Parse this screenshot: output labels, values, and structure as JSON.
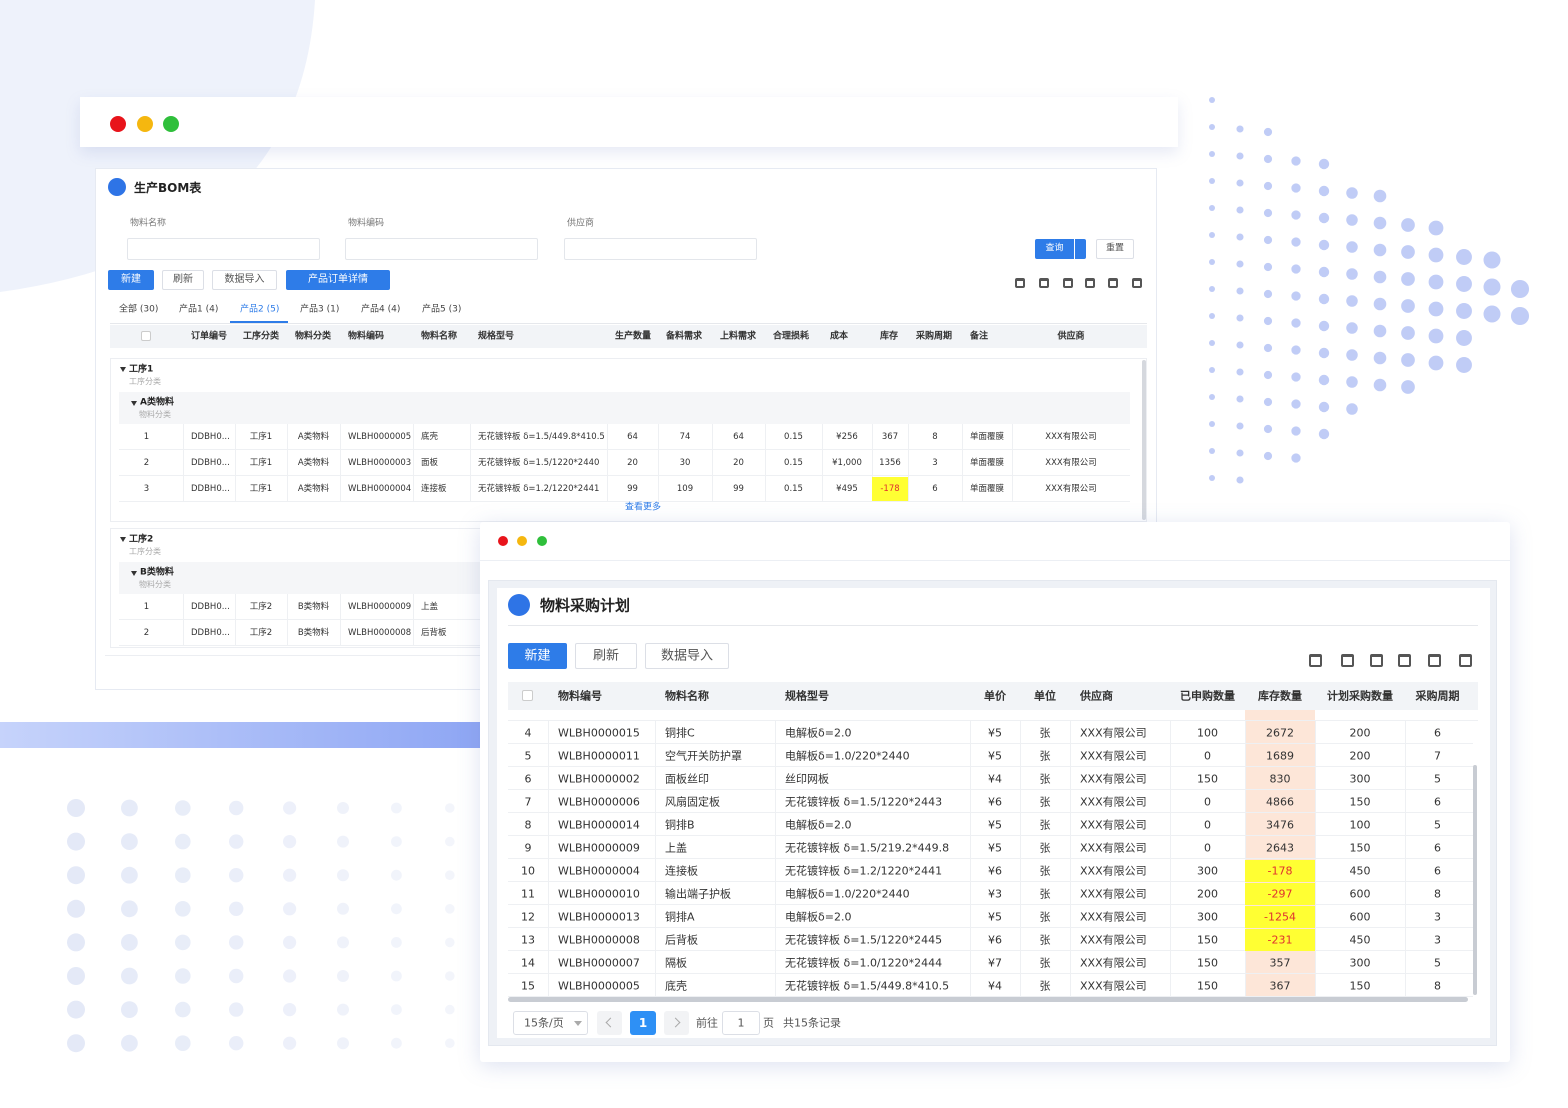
{
  "bom": {
    "title": "生产BOM表",
    "filters": [
      "物料名称",
      "物料编码",
      "供应商"
    ],
    "query": "查询",
    "reset": "重置",
    "toolbar": [
      "新建",
      "刷新",
      "数据导入",
      "产品订单详情"
    ],
    "tabs": [
      "全部 (30)",
      "产品1 (4)",
      "产品2 (5)",
      "产品3 (1)",
      "产品4 (4)",
      "产品5 (3)"
    ],
    "columns": [
      "订单编号",
      "工序分类",
      "物料分类",
      "物料编码",
      "物料名称",
      "规格型号",
      "生产数量",
      "备料需求",
      "上料需求",
      "合理损耗",
      "成本",
      "库存",
      "采购周期",
      "备注",
      "供应商"
    ],
    "groups": [
      {
        "name": "工序1",
        "caption": "工序分类",
        "subgroup": "A类物料",
        "subcaption": "物料分类",
        "more": "查看更多",
        "rows": [
          [
            "1",
            "DDBH0...",
            "工序1",
            "A类物料",
            "WLBH0000005",
            "底壳",
            "无花镀锌板 δ=1.5/449.8*410.5",
            "64",
            "74",
            "64",
            "0.15",
            "¥256",
            "367",
            "8",
            "单面覆膜",
            "XXX有限公司"
          ],
          [
            "2",
            "DDBH0...",
            "工序1",
            "A类物料",
            "WLBH0000003",
            "面板",
            "无花镀锌板 δ=1.5/1220*2440",
            "20",
            "30",
            "20",
            "0.15",
            "¥1,000",
            "1356",
            "3",
            "单面覆膜",
            "XXX有限公司"
          ],
          [
            "3",
            "DDBH0...",
            "工序1",
            "A类物料",
            "WLBH0000004",
            "连接板",
            "无花镀锌板 δ=1.2/1220*2441",
            "99",
            "109",
            "99",
            "0.15",
            "¥495",
            "-178",
            "6",
            "单面覆膜",
            "XXX有限公司"
          ]
        ]
      },
      {
        "name": "工序2",
        "caption": "工序分类",
        "subgroup": "B类物料",
        "subcaption": "物料分类",
        "rows": [
          [
            "1",
            "DDBH0...",
            "工序2",
            "B类物料",
            "WLBH0000009",
            "上盖"
          ],
          [
            "2",
            "DDBH0...",
            "工序2",
            "B类物料",
            "WLBH0000008",
            "后背板"
          ]
        ]
      }
    ]
  },
  "plan": {
    "title": "物料采购计划",
    "toolbar": [
      "新建",
      "刷新",
      "数据导入"
    ],
    "columns": [
      "物料编号",
      "物料名称",
      "规格型号",
      "单价",
      "单位",
      "供应商",
      "已申购数量",
      "库存数量",
      "计划采购数量",
      "采购周期"
    ],
    "rows": [
      [
        "4",
        "WLBH0000015",
        "铜排C",
        "电解板δ=2.0",
        "¥5",
        "张",
        "XXX有限公司",
        "100",
        "2672",
        "200",
        "6"
      ],
      [
        "5",
        "WLBH0000011",
        "空气开关防护罩",
        "电解板δ=1.0/220*2440",
        "¥5",
        "张",
        "XXX有限公司",
        "0",
        "1689",
        "200",
        "7"
      ],
      [
        "6",
        "WLBH0000002",
        "面板丝印",
        "丝印网板",
        "¥4",
        "张",
        "XXX有限公司",
        "150",
        "830",
        "300",
        "5"
      ],
      [
        "7",
        "WLBH0000006",
        "风扇固定板",
        "无花镀锌板 δ=1.5/1220*2443",
        "¥6",
        "张",
        "XXX有限公司",
        "0",
        "4866",
        "150",
        "6"
      ],
      [
        "8",
        "WLBH0000014",
        "铜排B",
        "电解板δ=2.0",
        "¥5",
        "张",
        "XXX有限公司",
        "0",
        "3476",
        "100",
        "5"
      ],
      [
        "9",
        "WLBH0000009",
        "上盖",
        "无花镀锌板 δ=1.5/219.2*449.8",
        "¥5",
        "张",
        "XXX有限公司",
        "0",
        "2643",
        "150",
        "6"
      ],
      [
        "10",
        "WLBH0000004",
        "连接板",
        "无花镀锌板 δ=1.2/1220*2441",
        "¥6",
        "张",
        "XXX有限公司",
        "300",
        "-178",
        "450",
        "6"
      ],
      [
        "11",
        "WLBH0000010",
        "输出端子护板",
        "电解板δ=1.0/220*2440",
        "¥3",
        "张",
        "XXX有限公司",
        "200",
        "-297",
        "600",
        "8"
      ],
      [
        "12",
        "WLBH0000013",
        "铜排A",
        "电解板δ=2.0",
        "¥5",
        "张",
        "XXX有限公司",
        "300",
        "-1254",
        "600",
        "3"
      ],
      [
        "13",
        "WLBH0000008",
        "后背板",
        "无花镀锌板 δ=1.5/1220*2445",
        "¥6",
        "张",
        "XXX有限公司",
        "150",
        "-231",
        "450",
        "3"
      ],
      [
        "14",
        "WLBH0000007",
        "隔板",
        "无花镀锌板 δ=1.0/1220*2444",
        "¥7",
        "张",
        "XXX有限公司",
        "150",
        "357",
        "300",
        "5"
      ],
      [
        "15",
        "WLBH0000005",
        "底壳",
        "无花镀锌板 δ=1.5/449.8*410.5",
        "¥4",
        "张",
        "XXX有限公司",
        "150",
        "367",
        "150",
        "8"
      ]
    ],
    "pagination": {
      "page_size": "15条/页",
      "current": "1",
      "goto": "前往",
      "goto_value": "1",
      "page_unit": "页",
      "total": "共15条记录"
    }
  }
}
